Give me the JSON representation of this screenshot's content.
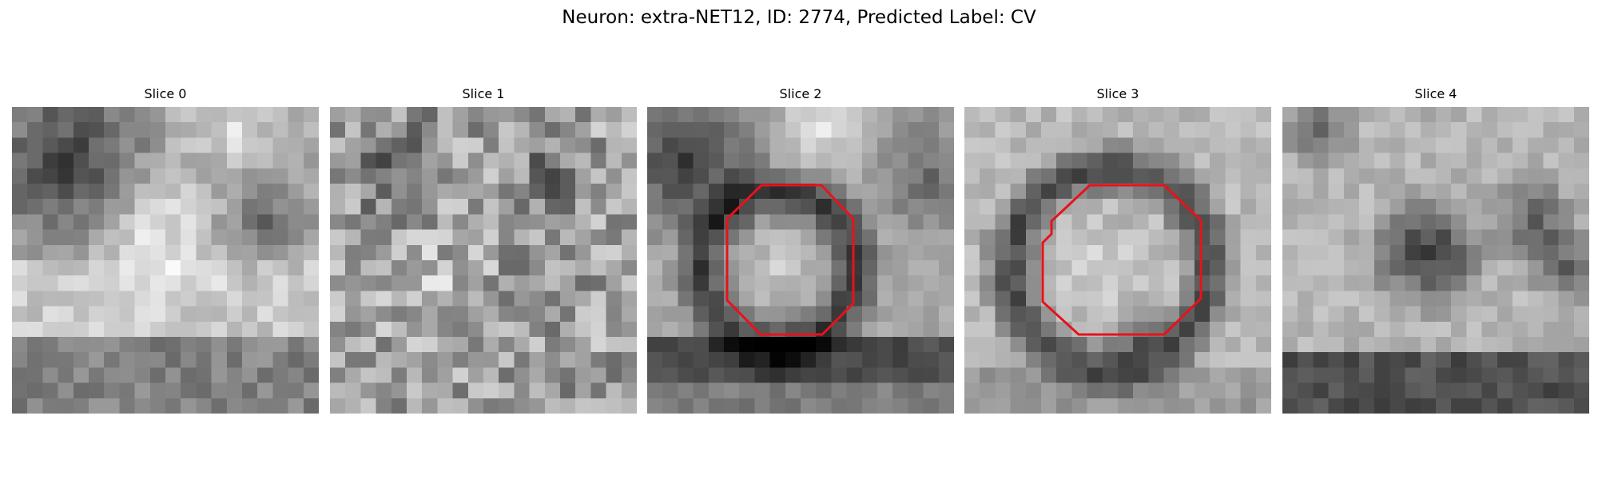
{
  "figure": {
    "title": "Neuron: extra-NET12, ID: 2774, Predicted Label: CV"
  },
  "outline_color": "#e8121a",
  "slices": [
    {
      "label": "Slice 0",
      "has_outline": false
    },
    {
      "label": "Slice 1",
      "has_outline": false
    },
    {
      "label": "Slice 2",
      "has_outline": true
    },
    {
      "label": "Slice 3",
      "has_outline": true
    },
    {
      "label": "Slice 4",
      "has_outline": false
    }
  ]
}
